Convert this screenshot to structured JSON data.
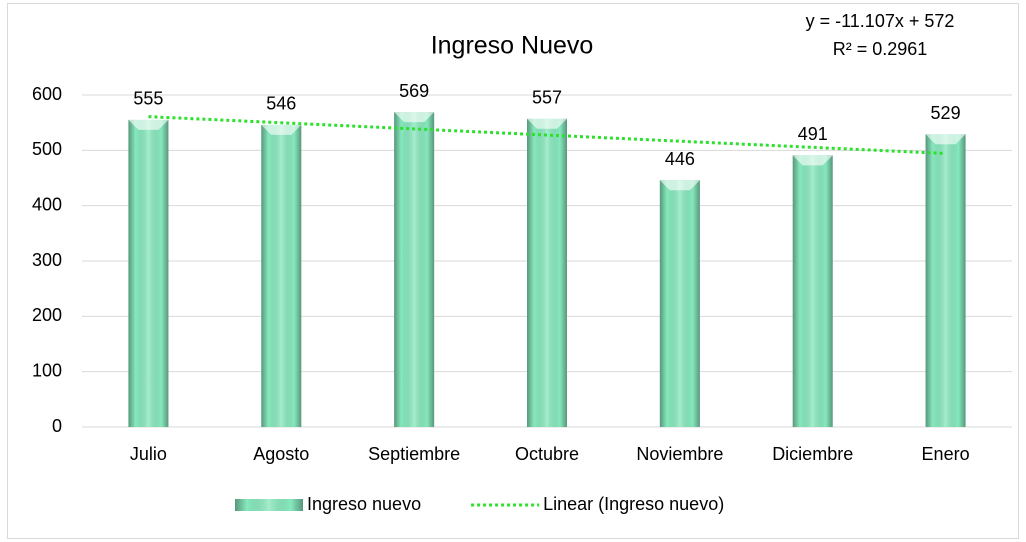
{
  "chart_data": {
    "type": "bar",
    "title": "Ingreso Nuevo",
    "annotations": [
      "y = -11.107x + 572",
      "R² = 0.2961"
    ],
    "categories": [
      "Julio",
      "Agosto",
      "Septiembre",
      "Octubre",
      "Noviembre",
      "Diciembre",
      "Enero"
    ],
    "series": [
      {
        "name": "Ingreso nuevo",
        "type": "bar",
        "color": "#86e8bd",
        "values": [
          555,
          546,
          569,
          557,
          446,
          491,
          529
        ]
      },
      {
        "name": "Linear (Ingreso nuevo)",
        "type": "line",
        "dashed": true,
        "color": "#2ee02e",
        "values": [
          560.9,
          549.8,
          538.7,
          527.6,
          516.5,
          505.4,
          494.3
        ]
      }
    ],
    "ylim": [
      0,
      600
    ],
    "yticks": [
      0,
      100,
      200,
      300,
      400,
      500,
      600
    ],
    "grid": true,
    "legend": "bottom"
  }
}
